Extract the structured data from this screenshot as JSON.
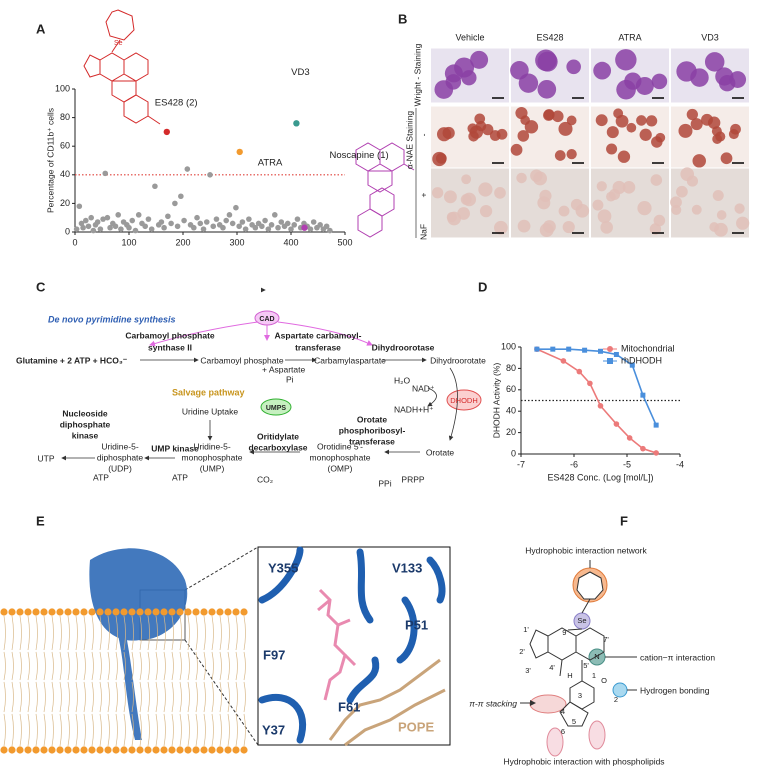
{
  "panel_labels": [
    "A",
    "B",
    "C",
    "D",
    "E",
    "F"
  ],
  "chart_data": [
    {
      "type": "scatter",
      "ylabel": "Percentage of CD11b⁺ cells",
      "xlim": [
        0,
        500
      ],
      "ylim": [
        0,
        100
      ],
      "xticks": [
        0,
        100,
        200,
        300,
        400,
        500
      ],
      "yticks": [
        0,
        20,
        40,
        60,
        80,
        100
      ],
      "x": [
        3,
        8,
        12,
        15,
        20,
        25,
        30,
        34,
        38,
        42,
        47,
        52,
        56,
        60,
        65,
        70,
        75,
        80,
        85,
        90,
        96,
        100,
        106,
        112,
        118,
        124,
        130,
        136,
        142,
        148,
        155,
        160,
        165,
        172,
        178,
        185,
        190,
        196,
        202,
        208,
        214,
        220,
        226,
        232,
        238,
        244,
        250,
        256,
        262,
        268,
        274,
        280,
        286,
        292,
        298,
        304,
        310,
        316,
        322,
        328,
        334,
        340,
        346,
        352,
        358,
        364,
        370,
        376,
        382,
        388,
        394,
        400,
        406,
        412,
        418,
        424,
        430,
        436,
        442,
        448,
        454,
        460,
        466,
        472
      ],
      "values": [
        2,
        18,
        6,
        3,
        8,
        4,
        10,
        1,
        5,
        7,
        2,
        9,
        41,
        10,
        3,
        6,
        4,
        12,
        2,
        7,
        5,
        3,
        8,
        1,
        12,
        6,
        4,
        9,
        2,
        32,
        5,
        7,
        3,
        11,
        6,
        20,
        4,
        25,
        8,
        44,
        5,
        3,
        10,
        6,
        2,
        7,
        40,
        4,
        9,
        5,
        3,
        8,
        12,
        6,
        17,
        4,
        7,
        2,
        9,
        5,
        3,
        6,
        4,
        8,
        2,
        5,
        12,
        3,
        7,
        4,
        6,
        2,
        5,
        9,
        3,
        6,
        4,
        2,
        7,
        3,
        5,
        2,
        4,
        1
      ],
      "color": "#9a9a9a",
      "reference_line": {
        "value": 40,
        "color": "#e0403a"
      },
      "highlights": [
        {
          "name": "ES428 (2)",
          "x": 170,
          "value": 70,
          "color": "#d42a2a"
        },
        {
          "name": "ATRA",
          "x": 305,
          "value": 56,
          "color": "#f29a2e"
        },
        {
          "name": "VD3",
          "x": 410,
          "value": 76,
          "color": "#3a9a8f"
        },
        {
          "name": "Noscapine (1)",
          "x": 425,
          "value": 3,
          "color": "#b03fb0"
        }
      ]
    },
    {
      "type": "line",
      "xlabel": "ES428  Conc. (Log [mol/L])",
      "ylabel": "DHODH Activity (%)",
      "xlim": [
        -7,
        -4
      ],
      "ylim": [
        0,
        100
      ],
      "xticks": [
        -7,
        -6,
        -5,
        -4
      ],
      "yticks": [
        0,
        20,
        40,
        60,
        80,
        100
      ],
      "reference_line": {
        "value": 50,
        "color": "#222222"
      },
      "legend": "upper right",
      "series": [
        {
          "name": "Mitochondrial",
          "color": "#ec7a7a",
          "marker": "circle",
          "x": [
            -6.7,
            -6.2,
            -5.9,
            -5.7,
            -5.5,
            -5.2,
            -4.95,
            -4.7,
            -4.45
          ],
          "values": [
            98,
            87,
            77,
            66,
            45,
            28,
            15,
            5,
            1
          ]
        },
        {
          "name": "rhDHODH",
          "color": "#4a8fdc",
          "marker": "square",
          "x": [
            -6.7,
            -6.4,
            -6.1,
            -5.8,
            -5.5,
            -5.2,
            -4.9,
            -4.7,
            -4.45
          ],
          "values": [
            98,
            98,
            98,
            97,
            96,
            93,
            83,
            55,
            27
          ]
        }
      ]
    }
  ],
  "panel_b": {
    "columns": [
      "Vehicle",
      "ES428",
      "ATRA",
      "VD3"
    ],
    "rows": [
      "Wright - Staining",
      "α-NAE Staining"
    ],
    "naf_states": [
      "-",
      "+"
    ],
    "naf": "NaF"
  },
  "panel_c": {
    "texts": [
      "De novo pyrimidine synthesis",
      "CAD",
      "Glutamine + 2 ATP + HCO₃⁻",
      "Carbamoyl phosphate",
      "synthase II",
      "Carbamoyl phosphate",
      "Aspartate carbamoyl-",
      "transferase",
      "+ Aspartate",
      "Pi",
      "Carbamylaspartate",
      "Dihydroorotase",
      "Dihydroorotate",
      "H₂O",
      "NAD⁺",
      "DHODH",
      "NADH+H⁺",
      "Salvage pathway",
      "Uridine Uptake",
      "UMPS",
      "Orotate",
      "phosphoribosyl-",
      "transferase",
      "Orotate",
      "Nucleoside",
      "diphosphate",
      "kinase",
      "Oritidylate",
      "decarboxylase",
      "UMP kinase",
      "Uridine-5-",
      "diphosphate",
      "(UDP)",
      "Uridine-5-",
      "monophosphate",
      "(UMP)",
      "Orotidine 5'-",
      "monophosphate",
      "(OMP)",
      "UTP",
      "ATP",
      "ATP",
      "CO₂",
      "PPi",
      "PRPP"
    ]
  },
  "panel_e": {
    "residues": [
      "Y355",
      "V133",
      "P51",
      "F97",
      "F61",
      "Y37"
    ],
    "lipid": "POPE"
  },
  "panel_f": {
    "interactions": [
      "Hydrophobic interaction network",
      "cation−π interaction",
      "Hydrogen bonding",
      "π-π stacking",
      "Hydrophobic interaction with phospholipids"
    ],
    "atoms": [
      "Se",
      "N",
      "1'",
      "2'",
      "3'",
      "4'",
      "9'",
      "7'",
      "5'",
      "H",
      "O",
      "1",
      "2",
      "3",
      "4",
      "5",
      "6"
    ]
  }
}
